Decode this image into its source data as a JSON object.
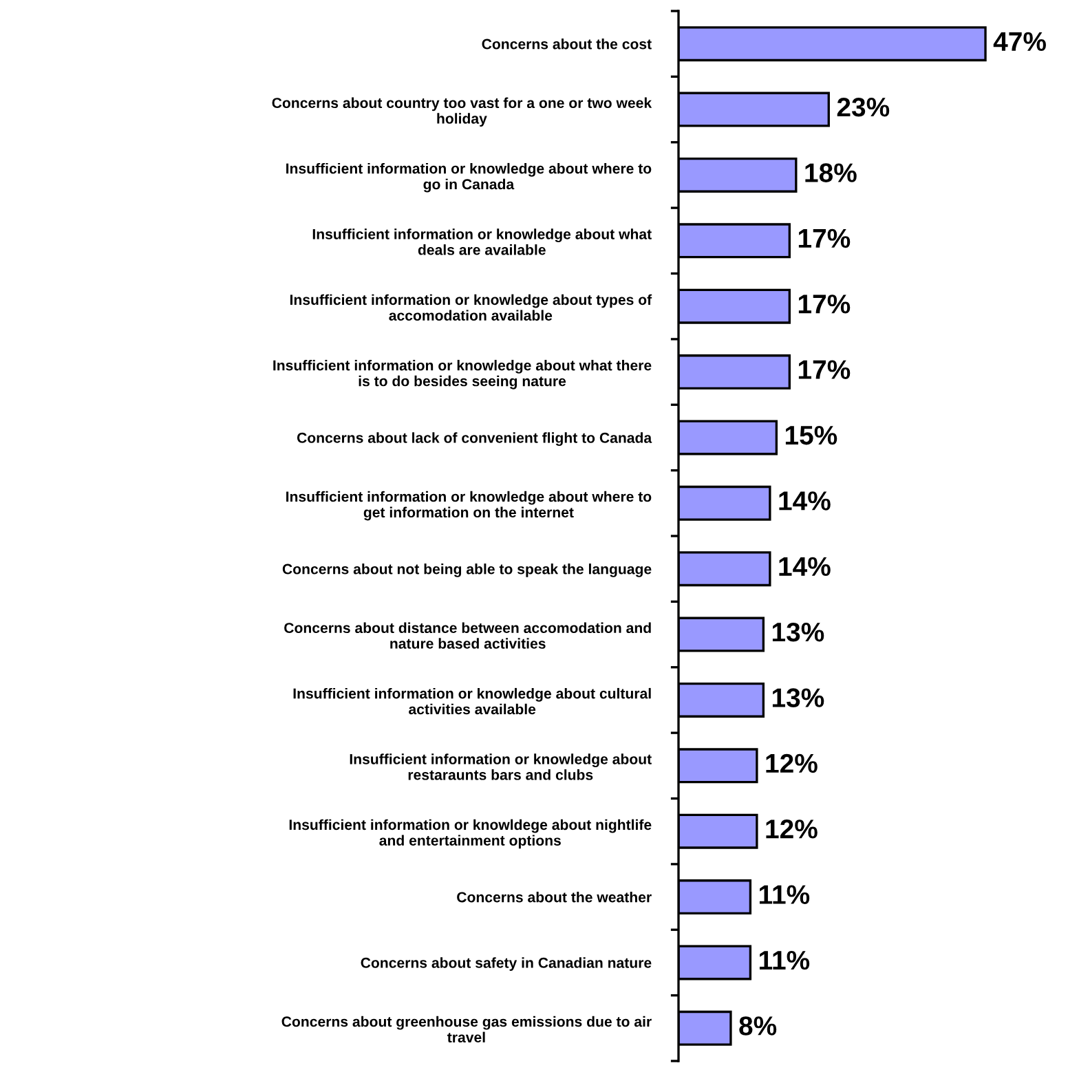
{
  "chart_data": {
    "type": "bar",
    "orientation": "horizontal",
    "categories": [
      "Concerns about the cost",
      "Concerns about country too vast for a one or two week\nholiday",
      "Insufficient information or knowledge about where to\ngo in Canada",
      "Insufficient information or knowledge about what\ndeals are available",
      "Insufficient information or knowledge about types of\naccomodation available",
      "Insufficient information or knowledge about what there\nis to do besides seeing nature",
      "Concerns about lack of convenient flight to Canada",
      "Insufficient information or knowledge about where to\nget information on the internet",
      "Concerns about not being able to speak the language",
      "Concerns about distance between accomodation and\nnature based activities",
      "Insufficient information or knowledge about cultural\nactivities available",
      "Insufficient information or knowledge about\nrestaraunts bars and clubs",
      "Insufficient information or knowldege about nightlife\nand entertainment options",
      "Concerns about the weather",
      "Concerns about safety in Canadian nature",
      "Concerns about greenhouse gas emissions due to air\ntravel"
    ],
    "values": [
      47,
      23,
      18,
      17,
      17,
      17,
      15,
      14,
      14,
      13,
      13,
      12,
      12,
      11,
      11,
      8
    ],
    "value_labels": [
      "47%",
      "23%",
      "18%",
      "17%",
      "17%",
      "17%",
      "15%",
      "14%",
      "14%",
      "13%",
      "13%",
      "12%",
      "12%",
      "11%",
      "11%",
      "8%"
    ],
    "color": "#9999ff",
    "grid": false,
    "legend": false
  }
}
